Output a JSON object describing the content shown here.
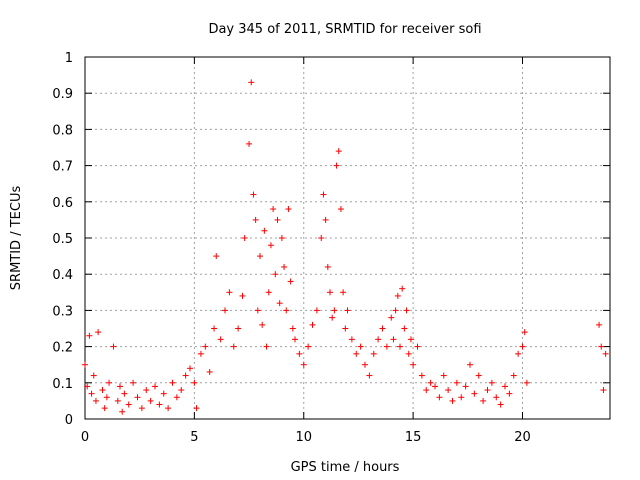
{
  "chart_data": {
    "type": "scatter",
    "title": "Day 345 of 2011, SRMTID for receiver sofi",
    "xlabel": "GPS time / hours",
    "ylabel": "SRMTID / TECUs",
    "xlim": [
      0,
      24
    ],
    "ylim": [
      0,
      1
    ],
    "xticks": [
      0,
      5,
      10,
      15,
      20
    ],
    "yticks": [
      0,
      0.1,
      0.2,
      0.3,
      0.4,
      0.5,
      0.6,
      0.7,
      0.8,
      0.9,
      1
    ],
    "ytick_labels": [
      "0",
      "0.1",
      "0.2",
      "0.3",
      "0.4",
      "0.5",
      "0.6",
      "0.7",
      "0.8",
      "0.9",
      "1"
    ],
    "grid": true,
    "marker": "+",
    "series": [
      {
        "name": "SRMTID",
        "color": "#ff0000",
        "x": [
          0.0,
          0.1,
          0.2,
          0.3,
          0.4,
          0.5,
          0.6,
          0.8,
          0.9,
          1.0,
          1.1,
          1.3,
          1.5,
          1.6,
          1.7,
          1.8,
          2.0,
          2.2,
          2.4,
          2.6,
          2.8,
          3.0,
          3.2,
          3.4,
          3.6,
          3.8,
          4.0,
          4.2,
          4.4,
          4.6,
          4.8,
          5.0,
          5.1,
          5.3,
          5.5,
          5.7,
          5.9,
          6.0,
          6.2,
          6.4,
          6.6,
          6.8,
          7.0,
          7.2,
          7.3,
          7.5,
          7.6,
          7.7,
          7.8,
          7.9,
          8.0,
          8.1,
          8.2,
          8.3,
          8.4,
          8.5,
          8.6,
          8.7,
          8.8,
          8.9,
          9.0,
          9.1,
          9.2,
          9.3,
          9.4,
          9.5,
          9.6,
          9.8,
          10.0,
          10.2,
          10.4,
          10.6,
          10.8,
          10.9,
          11.0,
          11.1,
          11.2,
          11.3,
          11.4,
          11.5,
          11.6,
          11.7,
          11.8,
          11.9,
          12.0,
          12.2,
          12.4,
          12.6,
          12.8,
          13.0,
          13.2,
          13.4,
          13.6,
          13.8,
          14.0,
          14.1,
          14.2,
          14.3,
          14.4,
          14.5,
          14.6,
          14.7,
          14.8,
          14.9,
          15.0,
          15.2,
          15.4,
          15.6,
          15.8,
          16.0,
          16.2,
          16.4,
          16.6,
          16.8,
          17.0,
          17.2,
          17.4,
          17.6,
          17.8,
          18.0,
          18.2,
          18.4,
          18.6,
          18.8,
          19.0,
          19.2,
          19.4,
          19.6,
          19.8,
          20.0,
          20.1,
          20.2,
          23.5,
          23.6,
          23.7,
          23.8
        ],
        "y": [
          0.15,
          0.09,
          0.23,
          0.07,
          0.12,
          0.05,
          0.24,
          0.08,
          0.03,
          0.06,
          0.1,
          0.2,
          0.05,
          0.09,
          0.02,
          0.07,
          0.04,
          0.1,
          0.06,
          0.03,
          0.08,
          0.05,
          0.09,
          0.04,
          0.07,
          0.03,
          0.1,
          0.06,
          0.08,
          0.12,
          0.14,
          0.1,
          0.03,
          0.18,
          0.2,
          0.13,
          0.25,
          0.45,
          0.22,
          0.3,
          0.35,
          0.2,
          0.25,
          0.34,
          0.5,
          0.76,
          0.93,
          0.62,
          0.55,
          0.3,
          0.45,
          0.26,
          0.52,
          0.2,
          0.35,
          0.48,
          0.58,
          0.4,
          0.55,
          0.32,
          0.5,
          0.42,
          0.3,
          0.58,
          0.38,
          0.25,
          0.22,
          0.18,
          0.15,
          0.2,
          0.26,
          0.3,
          0.5,
          0.62,
          0.55,
          0.42,
          0.35,
          0.28,
          0.3,
          0.7,
          0.74,
          0.58,
          0.35,
          0.25,
          0.3,
          0.22,
          0.18,
          0.2,
          0.15,
          0.12,
          0.18,
          0.22,
          0.25,
          0.2,
          0.28,
          0.22,
          0.3,
          0.34,
          0.2,
          0.36,
          0.25,
          0.3,
          0.18,
          0.22,
          0.15,
          0.2,
          0.12,
          0.08,
          0.1,
          0.09,
          0.06,
          0.12,
          0.08,
          0.05,
          0.1,
          0.06,
          0.09,
          0.15,
          0.07,
          0.12,
          0.05,
          0.08,
          0.1,
          0.06,
          0.04,
          0.09,
          0.07,
          0.12,
          0.18,
          0.2,
          0.24,
          0.1,
          0.26,
          0.2,
          0.08,
          0.18
        ]
      }
    ]
  }
}
